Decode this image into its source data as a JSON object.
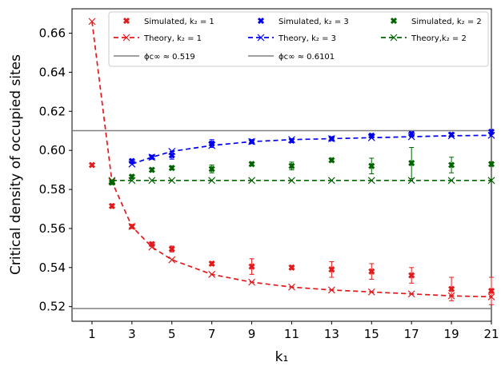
{
  "chart_data": {
    "type": "scatter",
    "xlabel": "k₁",
    "ylabel": "Critical density of occupied sites",
    "xlim": [
      0,
      21
    ],
    "ylim": [
      0.5125,
      0.6725
    ],
    "xticks": [
      1,
      3,
      5,
      7,
      9,
      11,
      13,
      15,
      17,
      19,
      21
    ],
    "xtick_labels": [
      "1",
      "3",
      "5",
      "7",
      "9",
      "11",
      "13",
      "15",
      "17",
      "19",
      "21"
    ],
    "yticks": [
      0.52,
      0.54,
      0.56,
      0.58,
      0.6,
      0.62,
      0.64,
      0.66
    ],
    "ytick_labels": [
      "0.52",
      "0.54",
      "0.56",
      "0.58",
      "0.60",
      "0.62",
      "0.64",
      "0.66"
    ],
    "grid": false,
    "legend_position": "top",
    "series": [
      {
        "name": "Simulated, k₂ = 1",
        "kind": "scatter",
        "marker": "X",
        "color": "#e31a1c",
        "x": [
          1,
          2,
          3,
          4,
          5,
          7,
          9,
          11,
          13,
          15,
          17,
          19,
          21
        ],
        "y": [
          0.5925,
          0.5715,
          0.561,
          0.552,
          0.5495,
          0.542,
          0.5405,
          0.54,
          0.539,
          0.538,
          0.536,
          0.529,
          0.528
        ],
        "err": [
          0,
          0.001,
          0.001,
          0.001,
          0.0015,
          0.001,
          0.004,
          0.001,
          0.004,
          0.004,
          0.004,
          0.006,
          0.007
        ]
      },
      {
        "name": "Simulated, k₂ = 3",
        "kind": "scatter",
        "marker": "X",
        "color": "#0000ee",
        "x": [
          3,
          4,
          5,
          7,
          9,
          11,
          13,
          15,
          17,
          19,
          21
        ],
        "y": [
          0.5945,
          0.5965,
          0.5975,
          0.6035,
          0.6045,
          0.605,
          0.606,
          0.6075,
          0.6085,
          0.608,
          0.6095
        ],
        "err": [
          0.001,
          0.001,
          0.002,
          0.002,
          0.001,
          0.001,
          0.001,
          0.001,
          0.001,
          0.001,
          0.001
        ]
      },
      {
        "name": "Simulated, k₂ = 2",
        "kind": "scatter",
        "marker": "X",
        "color": "#006400",
        "x": [
          2,
          3,
          4,
          5,
          7,
          9,
          11,
          13,
          15,
          17,
          19,
          21
        ],
        "y": [
          0.5835,
          0.5865,
          0.59,
          0.591,
          0.5905,
          0.593,
          0.592,
          0.595,
          0.592,
          0.5935,
          0.5925,
          0.593
        ],
        "err": [
          0.001,
          0.001,
          0.001,
          0.001,
          0.002,
          0.001,
          0.002,
          0.001,
          0.004,
          0.008,
          0.004,
          0.001
        ]
      },
      {
        "name": "Theory, k₂ = 1",
        "kind": "line",
        "marker": "x",
        "dashed": true,
        "color": "#e31a1c",
        "x": [
          1,
          2,
          3,
          4,
          5,
          7,
          9,
          11,
          13,
          15,
          17,
          19,
          21
        ],
        "y": [
          0.666,
          0.584,
          0.561,
          0.5505,
          0.544,
          0.5365,
          0.5325,
          0.53,
          0.5285,
          0.5275,
          0.5265,
          0.5255,
          0.525
        ]
      },
      {
        "name": "Theory, k₂ = 3",
        "kind": "line",
        "marker": "x",
        "dashed": true,
        "color": "#0000ee",
        "x": [
          3,
          4,
          5,
          7,
          9,
          11,
          13,
          15,
          17,
          19,
          21
        ],
        "y": [
          0.593,
          0.5965,
          0.5995,
          0.6025,
          0.6045,
          0.6055,
          0.606,
          0.6065,
          0.607,
          0.6075,
          0.6077
        ]
      },
      {
        "name": "Theory,k₂ = 2",
        "kind": "line",
        "marker": "x",
        "dashed": true,
        "color": "#006400",
        "x": [
          2,
          3,
          4,
          5,
          7,
          9,
          11,
          13,
          15,
          17,
          19,
          21
        ],
        "y": [
          0.5846,
          0.5846,
          0.5846,
          0.5846,
          0.5846,
          0.5846,
          0.5846,
          0.5846,
          0.5846,
          0.5846,
          0.5846,
          0.5846
        ]
      }
    ],
    "hlines": [
      {
        "name": "ϕc∞ ≈ 0.519",
        "y": 0.519,
        "color": "#808080"
      },
      {
        "name": "ϕc∞ ≈ 0.6101",
        "y": 0.6101,
        "color": "#808080"
      }
    ]
  }
}
